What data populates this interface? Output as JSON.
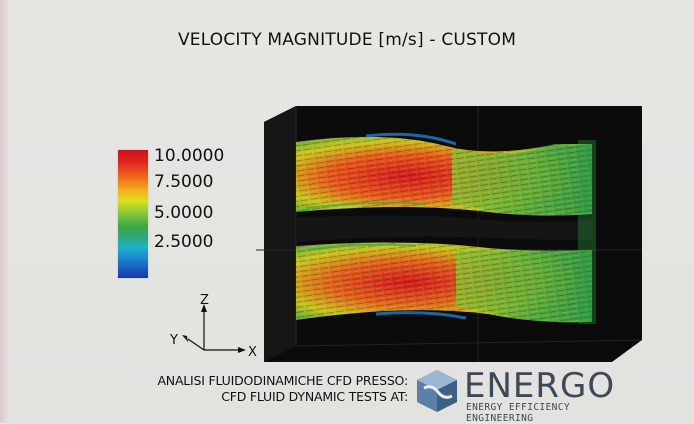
{
  "title": "VELOCITY MAGNITUDE [m/s] - CUSTOM",
  "legend": {
    "labels": [
      "10.0000",
      "7.5000",
      "5.0000",
      "2.5000"
    ]
  },
  "axes": {
    "z_label": "Z",
    "y_label": "Y",
    "x_label": "X"
  },
  "credit": {
    "line1": "ANALISI FLUIDODINAMICHE CFD PRESSO:",
    "line2": "CFD FLUID DYNAMIC TESTS AT:"
  },
  "logo": {
    "wordmark": "ENERGO",
    "tagline": "ENERGY EFFICIENCY ENGINEERING"
  },
  "colors": {
    "high": "#d41a1e",
    "mid_high": "#f2c21b",
    "mid": "#3da64a",
    "low": "#1c7fcf",
    "min": "#1736a8",
    "box": "#0b0b0b",
    "logo": "#3b4a59"
  }
}
